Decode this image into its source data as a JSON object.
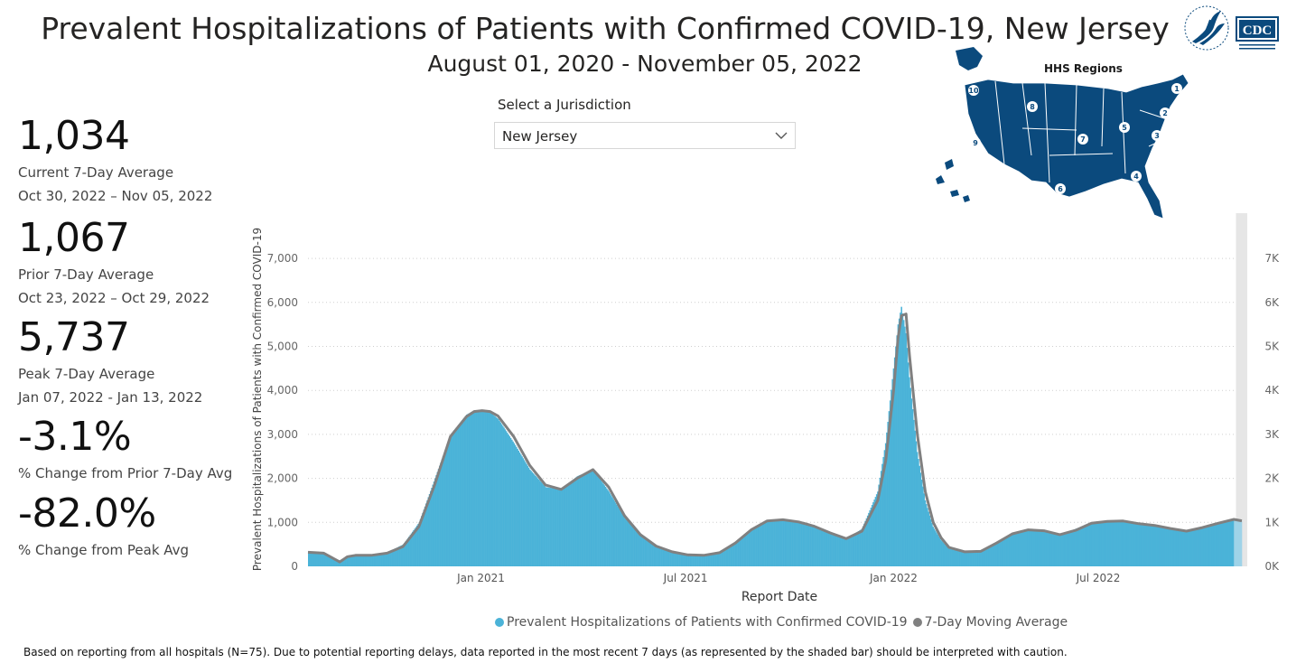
{
  "header": {
    "title": "Prevalent Hospitalizations of Patients with Confirmed COVID-19, New Jersey",
    "subtitle": "August 01, 2020 - November 05, 2022",
    "cdc_logo_text": "CDC"
  },
  "kpis": [
    {
      "value": "1,034",
      "label": "Current 7-Day Average",
      "sub": "Oct 30, 2022 – Nov 05, 2022"
    },
    {
      "value": "1,067",
      "label": "Prior 7-Day Average",
      "sub": "Oct 23, 2022 – Oct 29, 2022"
    },
    {
      "value": "5,737",
      "label": "Peak 7-Day Average",
      "sub": "Jan 07, 2022 - Jan 13, 2022"
    },
    {
      "value": "-3.1%",
      "label": "% Change from Prior 7-Day Avg"
    },
    {
      "value": "-82.0%",
      "label": "% Change from Peak Avg"
    }
  ],
  "jurisdiction": {
    "label": "Select a Jurisdiction",
    "selected": "New Jersey"
  },
  "hhs_map": {
    "title": "HHS Regions",
    "regions": [
      "1",
      "2",
      "3",
      "4",
      "5",
      "6",
      "7",
      "8",
      "9",
      "10"
    ],
    "fill_color": "#0b4a7d"
  },
  "legend": {
    "bars": "Prevalent Hospitalizations of Patients with Confirmed COVID-19",
    "line": "7-Day Moving Average"
  },
  "footnote": "Based on reporting from all hospitals (N=75). Due to potential reporting delays, data reported in the most recent 7 days (as represented by the shaded bar) should be interpreted with caution.",
  "chart_data": {
    "type": "bar",
    "title": "",
    "xlabel": "Report Date",
    "ylabel": "Prevalent Hospitalizations of Patients with Confirmed COVID-19",
    "ylim": [
      0,
      7700
    ],
    "xlim": [
      "2020-08-01",
      "2022-11-05"
    ],
    "grid": true,
    "legend_position": "bottom",
    "y_ticks_left": [
      "0",
      "1,000",
      "2,000",
      "3,000",
      "4,000",
      "5,000",
      "6,000",
      "7,000"
    ],
    "y_ticks_right": [
      "0K",
      "1K",
      "2K",
      "3K",
      "4K",
      "5K",
      "6K",
      "7K"
    ],
    "x_ticks": [
      {
        "date": "2021-01-01",
        "label": "Jan 2021"
      },
      {
        "date": "2021-07-01",
        "label": "Jul 2021"
      },
      {
        "date": "2022-01-01",
        "label": "Jan 2022"
      },
      {
        "date": "2022-07-01",
        "label": "Jul 2022"
      }
    ],
    "series": [
      {
        "name": "Prevalent Hospitalizations of Patients with Confirmed COVID-19",
        "kind": "bar",
        "color": "#4bb3d8",
        "x": [
          "2020-08-01",
          "2020-08-15",
          "2020-08-29",
          "2020-09-05",
          "2020-09-12",
          "2020-09-26",
          "2020-10-10",
          "2020-10-24",
          "2020-11-07",
          "2020-11-21",
          "2020-12-05",
          "2020-12-19",
          "2020-12-26",
          "2021-01-02",
          "2021-01-09",
          "2021-01-16",
          "2021-01-30",
          "2021-02-13",
          "2021-02-27",
          "2021-03-13",
          "2021-03-27",
          "2021-04-10",
          "2021-04-24",
          "2021-05-08",
          "2021-05-22",
          "2021-06-05",
          "2021-06-19",
          "2021-07-03",
          "2021-07-17",
          "2021-07-31",
          "2021-08-14",
          "2021-08-28",
          "2021-09-11",
          "2021-09-25",
          "2021-10-09",
          "2021-10-23",
          "2021-11-06",
          "2021-11-20",
          "2021-12-04",
          "2021-12-18",
          "2021-12-25",
          "2022-01-01",
          "2022-01-05",
          "2022-01-08",
          "2022-01-12",
          "2022-01-15",
          "2022-01-22",
          "2022-01-29",
          "2022-02-05",
          "2022-02-12",
          "2022-02-19",
          "2022-03-05",
          "2022-03-19",
          "2022-04-02",
          "2022-04-16",
          "2022-04-30",
          "2022-05-14",
          "2022-05-28",
          "2022-06-11",
          "2022-06-25",
          "2022-07-09",
          "2022-07-23",
          "2022-08-06",
          "2022-08-20",
          "2022-09-03",
          "2022-09-17",
          "2022-10-01",
          "2022-10-15",
          "2022-10-29",
          "2022-11-05"
        ],
        "values": [
          310,
          290,
          80,
          230,
          260,
          250,
          320,
          500,
          1000,
          2000,
          3000,
          3450,
          3550,
          3520,
          3500,
          3350,
          2800,
          2200,
          1800,
          1750,
          2050,
          2200,
          1700,
          1100,
          700,
          450,
          320,
          250,
          250,
          320,
          550,
          850,
          1050,
          1050,
          1000,
          900,
          750,
          620,
          850,
          1700,
          2800,
          4500,
          5500,
          5900,
          5300,
          4300,
          2600,
          1500,
          900,
          600,
          400,
          320,
          350,
          550,
          750,
          820,
          800,
          720,
          850,
          1000,
          1020,
          1020,
          960,
          920,
          850,
          800,
          900,
          1000,
          1050,
          1030
        ]
      },
      {
        "name": "7-Day Moving Average",
        "kind": "line",
        "color": "#808080",
        "x": [
          "2020-08-01",
          "2020-08-15",
          "2020-08-29",
          "2020-09-05",
          "2020-09-12",
          "2020-09-26",
          "2020-10-10",
          "2020-10-24",
          "2020-11-07",
          "2020-11-21",
          "2020-12-05",
          "2020-12-19",
          "2020-12-26",
          "2021-01-02",
          "2021-01-09",
          "2021-01-16",
          "2021-01-30",
          "2021-02-13",
          "2021-02-27",
          "2021-03-13",
          "2021-03-27",
          "2021-04-10",
          "2021-04-24",
          "2021-05-08",
          "2021-05-22",
          "2021-06-05",
          "2021-06-19",
          "2021-07-03",
          "2021-07-17",
          "2021-07-31",
          "2021-08-14",
          "2021-08-28",
          "2021-09-11",
          "2021-09-25",
          "2021-10-09",
          "2021-10-23",
          "2021-11-06",
          "2021-11-20",
          "2021-12-04",
          "2021-12-18",
          "2021-12-25",
          "2022-01-01",
          "2022-01-05",
          "2022-01-08",
          "2022-01-12",
          "2022-01-15",
          "2022-01-22",
          "2022-01-29",
          "2022-02-05",
          "2022-02-12",
          "2022-02-19",
          "2022-03-05",
          "2022-03-19",
          "2022-04-02",
          "2022-04-16",
          "2022-04-30",
          "2022-05-14",
          "2022-05-28",
          "2022-06-11",
          "2022-06-25",
          "2022-07-09",
          "2022-07-23",
          "2022-08-06",
          "2022-08-20",
          "2022-09-03",
          "2022-09-17",
          "2022-10-01",
          "2022-10-15",
          "2022-10-29",
          "2022-11-05"
        ],
        "values": [
          320,
          300,
          100,
          220,
          250,
          250,
          300,
          450,
          900,
          1850,
          2950,
          3400,
          3520,
          3540,
          3520,
          3420,
          2950,
          2300,
          1850,
          1750,
          2000,
          2200,
          1800,
          1150,
          720,
          460,
          330,
          260,
          250,
          310,
          530,
          830,
          1030,
          1060,
          1010,
          910,
          760,
          630,
          800,
          1500,
          2400,
          4000,
          5200,
          5700,
          5737,
          4800,
          3000,
          1700,
          1000,
          650,
          430,
          330,
          340,
          530,
          740,
          830,
          810,
          720,
          820,
          980,
          1020,
          1030,
          970,
          930,
          860,
          800,
          880,
          980,
          1067,
          1034
        ]
      }
    ],
    "shaded_recent_period": [
      "2022-10-30",
      "2022-11-05"
    ]
  }
}
